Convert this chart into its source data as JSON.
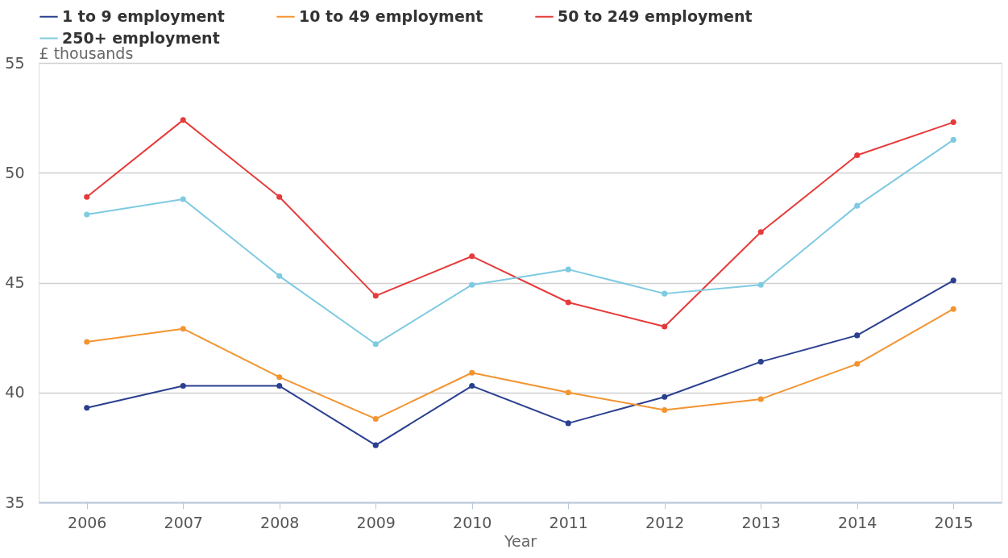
{
  "chart_data": {
    "type": "line",
    "xlabel": "Year",
    "ylabel": "£ thousands",
    "categories": [
      "2006",
      "2007",
      "2008",
      "2009",
      "2010",
      "2011",
      "2012",
      "2013",
      "2014",
      "2015"
    ],
    "series": [
      {
        "name": "1 to 9 employment",
        "color": "#2a3f8f",
        "values": [
          39.3,
          40.3,
          40.3,
          37.6,
          40.3,
          38.6,
          39.8,
          41.4,
          42.6,
          45.1
        ]
      },
      {
        "name": "10 to 49 employment",
        "color": "#f39431",
        "values": [
          42.3,
          42.9,
          40.7,
          38.8,
          40.9,
          40.0,
          39.2,
          39.7,
          41.3,
          43.8
        ]
      },
      {
        "name": "50 to 249 employment",
        "color": "#e63b3b",
        "values": [
          48.9,
          52.4,
          48.9,
          44.4,
          46.2,
          44.1,
          43.0,
          47.3,
          50.8,
          52.3
        ]
      },
      {
        "name": "250+ employment",
        "color": "#7ecae1",
        "values": [
          48.1,
          48.8,
          45.3,
          42.2,
          44.9,
          45.6,
          44.5,
          44.9,
          48.5,
          51.5
        ]
      }
    ],
    "ylim": [
      35,
      55
    ],
    "yticks": [
      35,
      40,
      45,
      50,
      55
    ],
    "grid": "y",
    "legend": "top",
    "marker": "circle",
    "line_style": "solid"
  }
}
